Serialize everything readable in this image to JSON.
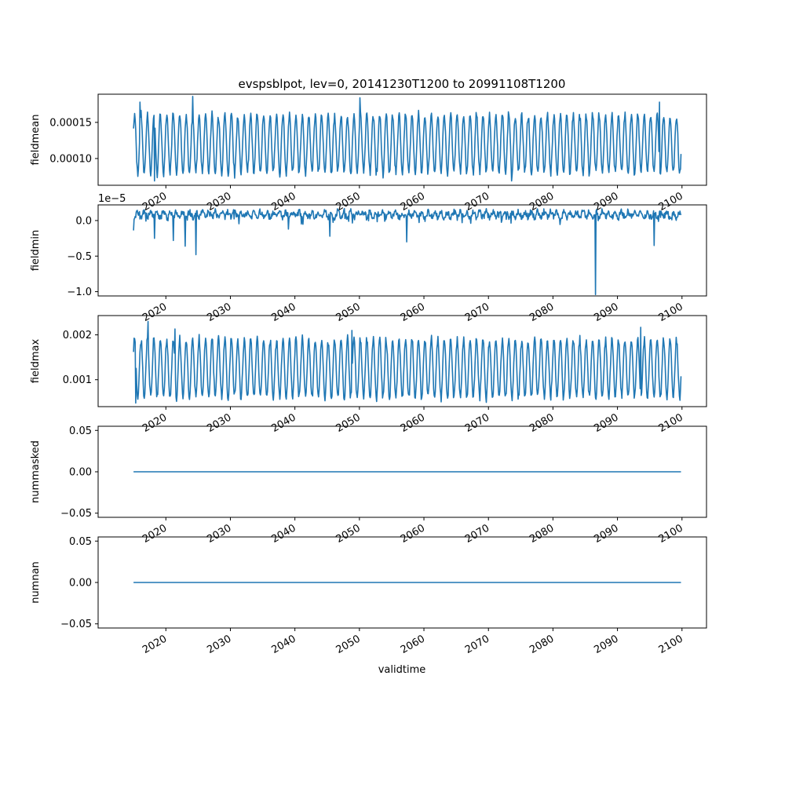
{
  "figure": {
    "title": "evspsblpot, lev=0, 20141230T1200 to 20991108T1200",
    "xlabel": "validtime",
    "series_color": "#1f77b4"
  },
  "chart_data": [
    {
      "type": "line",
      "name": "fieldmean",
      "ylabel": "fieldmean",
      "offset_label": "",
      "xlim": [
        2009.5,
        2103.8
      ],
      "ylim": [
        6.3e-05,
        0.000189
      ],
      "yticks": [
        {
          "v": 0.0001,
          "label": "0.00010"
        },
        {
          "v": 0.00015,
          "label": "0.00015"
        }
      ],
      "xticks": [
        2020,
        2030,
        2040,
        2050,
        2060,
        2070,
        2080,
        2090,
        2100
      ],
      "xticklabels": [
        "2020",
        "2030",
        "2040",
        "2050",
        "2060",
        "2070",
        "2080",
        "2090",
        "2100"
      ],
      "x_start": 2014.99,
      "x_end": 2099.85,
      "cycle": {
        "period_years": 1.0,
        "phase": 0.15,
        "min": 8e-05,
        "max": 0.00016
      },
      "extrema": [
        [
          2016.0,
          0.000178
        ],
        [
          2018.2,
          6.9e-05
        ],
        [
          2024.2,
          0.000186
        ],
        [
          2050.1,
          0.000184
        ],
        [
          2073.6,
          6.9e-05
        ],
        [
          2096.5,
          0.000178
        ]
      ]
    },
    {
      "type": "line",
      "name": "fieldmin",
      "ylabel": "fieldmin",
      "offset_label": "1e−5",
      "xlim": [
        2009.5,
        2103.8
      ],
      "ylim": [
        -1.06,
        0.22
      ],
      "yticks": [
        {
          "v": 0.0,
          "label": "0.0"
        },
        {
          "v": -0.5,
          "label": "−0.5"
        },
        {
          "v": -1.0,
          "label": "−1.0"
        }
      ],
      "xticks": [
        2020,
        2030,
        2040,
        2050,
        2060,
        2070,
        2080,
        2090,
        2100
      ],
      "xticklabels": [
        "2020",
        "2030",
        "2040",
        "2050",
        "2060",
        "2070",
        "2080",
        "2090",
        "2100"
      ],
      "x_start": 2014.99,
      "x_end": 2099.85,
      "cycle": {
        "period_years": 1.0,
        "phase": 0.4,
        "min": 0.02,
        "max": 0.15
      },
      "extrema": [
        [
          2015.0,
          -0.14
        ],
        [
          2018.2,
          -0.25
        ],
        [
          2021.2,
          -0.28
        ],
        [
          2023.0,
          -0.36
        ],
        [
          2024.7,
          -0.48
        ],
        [
          2039.0,
          -0.12
        ],
        [
          2045.4,
          -0.22
        ],
        [
          2057.3,
          -0.3
        ],
        [
          2086.6,
          -1.04
        ],
        [
          2095.7,
          -0.35
        ]
      ]
    },
    {
      "type": "line",
      "name": "fieldmax",
      "ylabel": "fieldmax",
      "offset_label": "",
      "xlim": [
        2009.5,
        2103.8
      ],
      "ylim": [
        0.0004,
        0.00243
      ],
      "yticks": [
        {
          "v": 0.001,
          "label": "0.001"
        },
        {
          "v": 0.002,
          "label": "0.002"
        }
      ],
      "xticks": [
        2020,
        2030,
        2040,
        2050,
        2060,
        2070,
        2080,
        2090,
        2100
      ],
      "xticklabels": [
        "2020",
        "2030",
        "2040",
        "2050",
        "2060",
        "2070",
        "2080",
        "2090",
        "2100"
      ],
      "x_start": 2014.99,
      "x_end": 2099.85,
      "cycle": {
        "period_years": 1.0,
        "phase": 0.15,
        "min": 0.0006,
        "max": 0.0019
      },
      "extrema": [
        [
          2015.3,
          0.00048
        ],
        [
          2017.2,
          0.0023
        ],
        [
          2021.4,
          0.00213
        ],
        [
          2025.2,
          0.00201
        ],
        [
          2048.8,
          0.0021
        ],
        [
          2093.6,
          0.00217
        ]
      ]
    },
    {
      "type": "line",
      "name": "nummasked",
      "ylabel": "nummasked",
      "offset_label": "",
      "xlim": [
        2009.5,
        2103.8
      ],
      "ylim": [
        -0.055,
        0.055
      ],
      "yticks": [
        {
          "v": -0.05,
          "label": "−0.05"
        },
        {
          "v": 0.0,
          "label": "0.00"
        },
        {
          "v": 0.05,
          "label": "0.05"
        }
      ],
      "xticks": [
        2020,
        2030,
        2040,
        2050,
        2060,
        2070,
        2080,
        2090,
        2100
      ],
      "xticklabels": [
        "2020",
        "2030",
        "2040",
        "2050",
        "2060",
        "2070",
        "2080",
        "2090",
        "2100"
      ],
      "x": [
        2014.99,
        2099.85
      ],
      "y": [
        0,
        0
      ]
    },
    {
      "type": "line",
      "name": "numnan",
      "ylabel": "numnan",
      "offset_label": "",
      "xlim": [
        2009.5,
        2103.8
      ],
      "ylim": [
        -0.055,
        0.055
      ],
      "yticks": [
        {
          "v": -0.05,
          "label": "−0.05"
        },
        {
          "v": 0.0,
          "label": "0.00"
        },
        {
          "v": 0.05,
          "label": "0.05"
        }
      ],
      "xticks": [
        2020,
        2030,
        2040,
        2050,
        2060,
        2070,
        2080,
        2090,
        2100
      ],
      "xticklabels": [
        "2020",
        "2030",
        "2040",
        "2050",
        "2060",
        "2070",
        "2080",
        "2090",
        "2100"
      ],
      "x": [
        2014.99,
        2099.85
      ],
      "y": [
        0,
        0
      ]
    }
  ]
}
